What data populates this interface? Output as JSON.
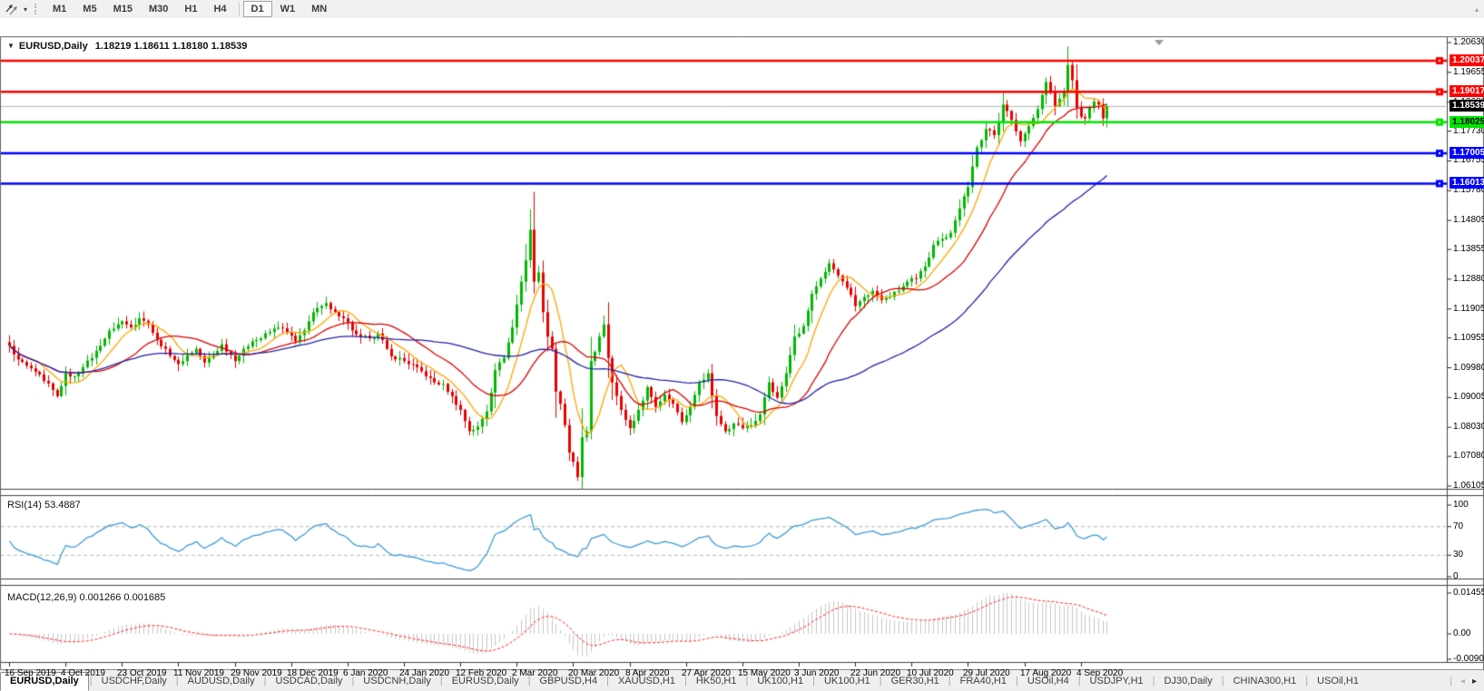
{
  "toolbar": {
    "dropdown_caret": "▾",
    "scroll_up_glyph": "▴",
    "timeframes": [
      {
        "label": "M1",
        "active": false
      },
      {
        "label": "M5",
        "active": false
      },
      {
        "label": "M15",
        "active": false
      },
      {
        "label": "M30",
        "active": false
      },
      {
        "label": "H1",
        "active": false
      },
      {
        "label": "H4",
        "active": false
      },
      {
        "divider": true
      },
      {
        "label": "D1",
        "active": true
      },
      {
        "label": "W1",
        "active": false
      },
      {
        "label": "MN",
        "active": false
      }
    ]
  },
  "title_bar": {
    "collapse_glyph": "▼",
    "symbol": "EURUSD,Daily",
    "ohlc": "1.18219 1.18611 1.18180 1.18539"
  },
  "rsi_label": "RSI(14) 53.4887",
  "macd_label": "MACD(12,26,9) 0.001266 0.001685",
  "chart_data": {
    "type": "candlestick",
    "symbol": "EURUSD",
    "timeframe": "Daily",
    "ohlc_display": {
      "open": "1.18219",
      "high": "1.18611",
      "low": "1.18180",
      "close": "1.18539"
    },
    "bars": 254,
    "close_anchors": [
      [
        0,
        1.107
      ],
      [
        2,
        1.1025
      ],
      [
        4,
        1.1005
      ],
      [
        6,
        1.0985
      ],
      [
        8,
        1.0955
      ],
      [
        10,
        1.0925
      ],
      [
        11,
        1.0905
      ],
      [
        13,
        1.098
      ],
      [
        15,
        1.097
      ],
      [
        17,
        1.1
      ],
      [
        19,
        1.103
      ],
      [
        21,
        1.107
      ],
      [
        23,
        1.112
      ],
      [
        26,
        1.115
      ],
      [
        28,
        1.113
      ],
      [
        30,
        1.116
      ],
      [
        32,
        1.114
      ],
      [
        34,
        1.109
      ],
      [
        36,
        1.106
      ],
      [
        39,
        1.101
      ],
      [
        41,
        1.104
      ],
      [
        43,
        1.106
      ],
      [
        45,
        1.1015
      ],
      [
        47,
        1.104
      ],
      [
        49,
        1.1075
      ],
      [
        51,
        1.104
      ],
      [
        52,
        1.102
      ],
      [
        54,
        1.106
      ],
      [
        56,
        1.1085
      ],
      [
        58,
        1.1095
      ],
      [
        60,
        1.1115
      ],
      [
        62,
        1.113
      ],
      [
        64,
        1.1115
      ],
      [
        66,
        1.1085
      ],
      [
        68,
        1.112
      ],
      [
        70,
        1.118
      ],
      [
        72,
        1.12
      ],
      [
        73,
        1.121
      ],
      [
        75,
        1.118
      ],
      [
        77,
        1.116
      ],
      [
        79,
        1.112
      ],
      [
        81,
        1.11
      ],
      [
        83,
        1.1095
      ],
      [
        85,
        1.111
      ],
      [
        87,
        1.106
      ],
      [
        88,
        1.1035
      ],
      [
        90,
        1.103
      ],
      [
        92,
        1.101
      ],
      [
        94,
        1.1
      ],
      [
        96,
        1.097
      ],
      [
        98,
        1.095
      ],
      [
        100,
        1.0945
      ],
      [
        102,
        1.0905
      ],
      [
        104,
        1.086
      ],
      [
        106,
        1.079
      ],
      [
        108,
        1.0805
      ],
      [
        110,
        1.0855
      ],
      [
        112,
        1.099
      ],
      [
        114,
        1.103
      ],
      [
        116,
        1.113
      ],
      [
        118,
        1.128
      ],
      [
        119,
        1.135
      ],
      [
        120,
        1.145
      ],
      [
        121,
        1.128
      ],
      [
        122,
        1.131
      ],
      [
        123,
        1.118
      ],
      [
        124,
        1.11
      ],
      [
        125,
        1.106
      ],
      [
        126,
        1.092
      ],
      [
        127,
        1.088
      ],
      [
        128,
        1.081
      ],
      [
        129,
        1.072
      ],
      [
        130,
        1.069
      ],
      [
        131,
        1.064
      ],
      [
        132,
        1.077
      ],
      [
        133,
        1.079
      ],
      [
        134,
        1.102
      ],
      [
        135,
        1.105
      ],
      [
        136,
        1.11
      ],
      [
        137,
        1.114
      ],
      [
        138,
        1.103
      ],
      [
        139,
        1.095
      ],
      [
        141,
        1.086
      ],
      [
        143,
        1.08
      ],
      [
        145,
        1.086
      ],
      [
        147,
        1.0935
      ],
      [
        149,
        1.087
      ],
      [
        151,
        1.091
      ],
      [
        153,
        1.088
      ],
      [
        155,
        1.082
      ],
      [
        157,
        1.087
      ],
      [
        159,
        1.095
      ],
      [
        161,
        1.098
      ],
      [
        163,
        1.084
      ],
      [
        165,
        1.079
      ],
      [
        167,
        1.0815
      ],
      [
        169,
        1.08
      ],
      [
        171,
        1.081
      ],
      [
        173,
        1.0845
      ],
      [
        175,
        1.095
      ],
      [
        177,
        1.09
      ],
      [
        179,
        1.098
      ],
      [
        181,
        1.11
      ],
      [
        183,
        1.1135
      ],
      [
        185,
        1.124
      ],
      [
        187,
        1.129
      ],
      [
        189,
        1.134
      ],
      [
        191,
        1.13
      ],
      [
        193,
        1.126
      ],
      [
        195,
        1.12
      ],
      [
        197,
        1.123
      ],
      [
        199,
        1.125
      ],
      [
        201,
        1.122
      ],
      [
        203,
        1.123
      ],
      [
        205,
        1.125
      ],
      [
        207,
        1.128
      ],
      [
        209,
        1.129
      ],
      [
        211,
        1.133
      ],
      [
        213,
        1.14
      ],
      [
        215,
        1.142
      ],
      [
        217,
        1.144
      ],
      [
        219,
        1.152
      ],
      [
        221,
        1.159
      ],
      [
        223,
        1.172
      ],
      [
        225,
        1.178
      ],
      [
        227,
        1.176
      ],
      [
        229,
        1.186
      ],
      [
        231,
        1.181
      ],
      [
        233,
        1.174
      ],
      [
        235,
        1.179
      ],
      [
        237,
        1.1845
      ],
      [
        239,
        1.1934
      ],
      [
        241,
        1.1856
      ],
      [
        243,
        1.19
      ],
      [
        244,
        1.199
      ],
      [
        245,
        1.194
      ],
      [
        246,
        1.185
      ],
      [
        247,
        1.182
      ],
      [
        248,
        1.1815
      ],
      [
        249,
        1.185
      ],
      [
        250,
        1.187
      ],
      [
        251,
        1.186
      ],
      [
        252,
        1.1815
      ],
      [
        253,
        1.1854
      ]
    ],
    "colors": {
      "bull": "#00b800",
      "bear": "#e80000",
      "ma_fast": "#ffa500",
      "ma_mid": "#dd0000",
      "ma_slow": "#2222aa",
      "rsi": "#3e9bd8",
      "rsi_level": "#b4b4b4",
      "macd_hist": "#c6c6c6",
      "macd_signal": "#ff2020",
      "frame": "#6a6a6a",
      "axis": "#444444"
    },
    "moving_averages": [
      {
        "period": 8,
        "color_key": "ma_fast"
      },
      {
        "period": 20,
        "color_key": "ma_mid"
      },
      {
        "period": 55,
        "color_key": "ma_slow"
      }
    ],
    "price_axis": {
      "ticks": [
        "1.20630",
        "1.19655",
        "1.18680",
        "1.17730",
        "1.16755",
        "1.15780",
        "1.14805",
        "1.13855",
        "1.12880",
        "1.11905",
        "1.10955",
        "1.09980",
        "1.09005",
        "1.08030",
        "1.07080",
        "1.06105"
      ]
    },
    "hlines": [
      {
        "value": 1.20037,
        "label": "1.20037",
        "color": "#ff0000",
        "text_color": "#ffffff"
      },
      {
        "value": 1.19017,
        "label": "1.19017",
        "color": "#ff0000",
        "text_color": "#ffffff"
      },
      {
        "value": 1.18025,
        "label": "1.18025",
        "color": "#00e600",
        "text_color": "#000000"
      },
      {
        "value": 1.17005,
        "label": "1.17005",
        "color": "#0000ff",
        "text_color": "#ffffff"
      },
      {
        "value": 1.16013,
        "label": "1.16013",
        "color": "#0000ff",
        "text_color": "#ffffff"
      }
    ],
    "current_price": {
      "value": 1.18539,
      "label": "1.18539",
      "box_color": "#000000",
      "text_color": "#ffffff",
      "line_color": "#b4b4b4"
    },
    "x_axis_dates": [
      "16 Sep 2019",
      "4 Oct 2019",
      "23 Oct 2019",
      "11 Nov 2019",
      "29 Nov 2019",
      "18 Dec 2019",
      "6 Jan 2020",
      "24 Jan 2020",
      "12 Feb 2020",
      "2 Mar 2020",
      "20 Mar 2020",
      "8 Apr 2020",
      "27 Apr 2020",
      "15 May 2020",
      "3 Jun 2020",
      "22 Jun 2020",
      "10 Jul 2020",
      "29 Jul 2020",
      "17 Aug 2020",
      "4 Sep 2020"
    ],
    "date_tick_indices": [
      0,
      13,
      26,
      39,
      52,
      65,
      78,
      91,
      104,
      117,
      130,
      143,
      156,
      169,
      182,
      195,
      208,
      221,
      234,
      247
    ],
    "rsi": {
      "period": 14,
      "current": "53.4887",
      "levels": [
        70,
        30
      ],
      "scale_ticks": [
        {
          "v": 100,
          "label": "100"
        },
        {
          "v": 70,
          "label": "70"
        },
        {
          "v": 30,
          "label": "30"
        },
        {
          "v": 0,
          "label": "0"
        }
      ]
    },
    "macd": {
      "fast": 12,
      "slow": 26,
      "signal": 9,
      "values_display": "0.001266 0.001685",
      "scale_ticks": [
        {
          "v": 0.01455,
          "label": "0.01455"
        },
        {
          "v": 0,
          "label": "0.00"
        },
        {
          "v": -0.009,
          "label": "-0.00900"
        }
      ]
    }
  },
  "tabs": {
    "scroll_left": "◂",
    "scroll_right": "▸",
    "items": [
      {
        "label": "EURUSD,Daily",
        "active": true
      },
      {
        "label": "USDCHF,Daily",
        "active": false
      },
      {
        "label": "AUDUSD,Daily",
        "active": false
      },
      {
        "label": "USDCAD,Daily",
        "active": false
      },
      {
        "label": "USDCNH,Daily",
        "active": false
      },
      {
        "label": "EURUSD,Daily",
        "active": false
      },
      {
        "label": "GBPUSD,H4",
        "active": false
      },
      {
        "label": "XAUUSD,H1",
        "active": false
      },
      {
        "label": "HK50,H1",
        "active": false
      },
      {
        "label": "UK100,H1",
        "active": false
      },
      {
        "label": "UK100,H1",
        "active": false
      },
      {
        "label": "GER30,H1",
        "active": false
      },
      {
        "label": "FRA40,H1",
        "active": false
      },
      {
        "label": "USOil,H4",
        "active": false
      },
      {
        "label": "USDJPY,H1",
        "active": false
      },
      {
        "label": "DJ30,Daily",
        "active": false
      },
      {
        "label": "CHINA300,H1",
        "active": false
      },
      {
        "label": "USOil,H1",
        "active": false
      }
    ]
  }
}
